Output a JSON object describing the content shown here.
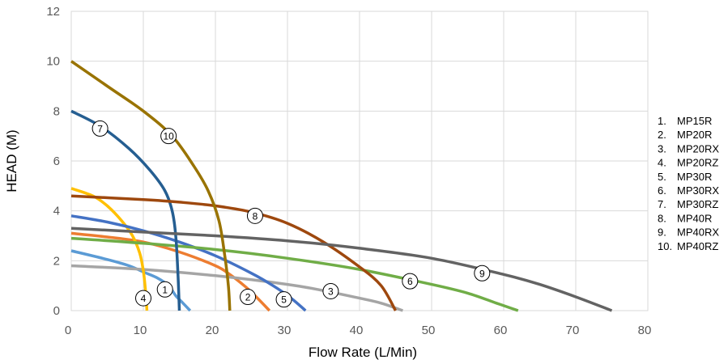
{
  "chart_data": {
    "type": "line",
    "title": "",
    "xlabel": "Flow Rate (L/Min)",
    "ylabel": "HEAD (M)",
    "xlim": [
      0,
      80
    ],
    "ylim": [
      0,
      12
    ],
    "x_ticks": [
      "0",
      "10",
      "20",
      "30",
      "40",
      "50",
      "60",
      "70",
      "80"
    ],
    "y_ticks": [
      "0",
      "2",
      "4",
      "6",
      "8",
      "10",
      "12"
    ],
    "grid": true,
    "legend_position": "right",
    "series": [
      {
        "id": "1",
        "name": "MP15R",
        "color": "#5B9BD5",
        "points": [
          [
            0,
            2.4
          ],
          [
            5,
            2.05
          ],
          [
            8,
            1.8
          ],
          [
            10,
            1.55
          ],
          [
            12,
            1.3
          ],
          [
            13.5,
            1.0
          ],
          [
            14.5,
            0.6
          ],
          [
            15.5,
            0.3
          ],
          [
            16.5,
            0
          ]
        ],
        "marker": [
          13,
          0.85
        ]
      },
      {
        "id": "2",
        "name": "MP20R",
        "color": "#ED7D31",
        "points": [
          [
            0,
            3.1
          ],
          [
            5,
            2.95
          ],
          [
            10,
            2.75
          ],
          [
            15,
            2.35
          ],
          [
            20,
            1.8
          ],
          [
            22,
            1.45
          ],
          [
            24,
            1.0
          ],
          [
            25.5,
            0.6
          ],
          [
            27.5,
            0
          ]
        ],
        "marker": [
          24.5,
          0.55
        ]
      },
      {
        "id": "3",
        "name": "MP20RX",
        "color": "#A5A5A5",
        "points": [
          [
            0,
            1.8
          ],
          [
            10,
            1.65
          ],
          [
            20,
            1.4
          ],
          [
            30,
            1.05
          ],
          [
            35,
            0.8
          ],
          [
            40,
            0.5
          ],
          [
            43,
            0.3
          ],
          [
            46,
            0
          ]
        ],
        "marker": [
          36,
          0.78
        ]
      },
      {
        "id": "4",
        "name": "MP20RZ",
        "color": "#FFC000",
        "points": [
          [
            0,
            4.9
          ],
          [
            3,
            4.6
          ],
          [
            5,
            4.2
          ],
          [
            7,
            3.6
          ],
          [
            8.5,
            3.0
          ],
          [
            9.5,
            2.3
          ],
          [
            10,
            1.6
          ],
          [
            10.3,
            0.8
          ],
          [
            10.5,
            0
          ]
        ],
        "marker": [
          10,
          0.5
        ]
      },
      {
        "id": "5",
        "name": "MP30R",
        "color": "#4472C4",
        "points": [
          [
            0,
            3.8
          ],
          [
            5,
            3.55
          ],
          [
            10,
            3.2
          ],
          [
            15,
            2.75
          ],
          [
            20,
            2.2
          ],
          [
            25,
            1.5
          ],
          [
            28,
            1.0
          ],
          [
            30.5,
            0.5
          ],
          [
            32.5,
            0
          ]
        ],
        "marker": [
          29.5,
          0.45
        ]
      },
      {
        "id": "6",
        "name": "MP30RX",
        "color": "#70AD47",
        "points": [
          [
            0,
            2.9
          ],
          [
            10,
            2.7
          ],
          [
            20,
            2.45
          ],
          [
            30,
            2.1
          ],
          [
            40,
            1.65
          ],
          [
            50,
            1.05
          ],
          [
            55,
            0.7
          ],
          [
            59,
            0.3
          ],
          [
            62,
            0
          ]
        ],
        "marker": [
          47,
          1.18
        ]
      },
      {
        "id": "7",
        "name": "MP30RZ",
        "color": "#255E91",
        "points": [
          [
            0,
            8.0
          ],
          [
            4,
            7.4
          ],
          [
            8,
            6.5
          ],
          [
            11,
            5.6
          ],
          [
            13,
            4.8
          ],
          [
            14,
            4.0
          ],
          [
            14.5,
            3.0
          ],
          [
            14.8,
            1.5
          ],
          [
            15,
            0
          ]
        ],
        "marker": [
          4,
          7.3
        ]
      },
      {
        "id": "8",
        "name": "MP40R",
        "color": "#9E480E",
        "points": [
          [
            0,
            4.6
          ],
          [
            10,
            4.45
          ],
          [
            15,
            4.35
          ],
          [
            20,
            4.2
          ],
          [
            25,
            3.95
          ],
          [
            30,
            3.5
          ],
          [
            35,
            2.75
          ],
          [
            40,
            1.75
          ],
          [
            43,
            1.0
          ],
          [
            45,
            0
          ]
        ],
        "marker": [
          25.5,
          3.8
        ]
      },
      {
        "id": "9",
        "name": "MP40RX",
        "color": "#636363",
        "points": [
          [
            0,
            3.3
          ],
          [
            10,
            3.15
          ],
          [
            20,
            3.0
          ],
          [
            30,
            2.8
          ],
          [
            40,
            2.5
          ],
          [
            50,
            2.1
          ],
          [
            60,
            1.45
          ],
          [
            65,
            1.05
          ],
          [
            70,
            0.55
          ],
          [
            75,
            0
          ]
        ],
        "marker": [
          57,
          1.5
        ]
      },
      {
        "id": "10",
        "name": "MP40RZ",
        "color": "#997300",
        "points": [
          [
            0,
            10.0
          ],
          [
            5,
            9.0
          ],
          [
            10,
            8.0
          ],
          [
            14,
            7.0
          ],
          [
            17,
            5.8
          ],
          [
            19,
            4.8
          ],
          [
            20.5,
            3.6
          ],
          [
            21.3,
            2.2
          ],
          [
            21.8,
            1.0
          ],
          [
            22,
            0
          ]
        ],
        "marker": [
          13.5,
          7.0
        ]
      }
    ],
    "legend": [
      "1.",
      "2.",
      "3.",
      "4.",
      "5.",
      "6.",
      "7.",
      "8.",
      "9.",
      "10."
    ]
  }
}
